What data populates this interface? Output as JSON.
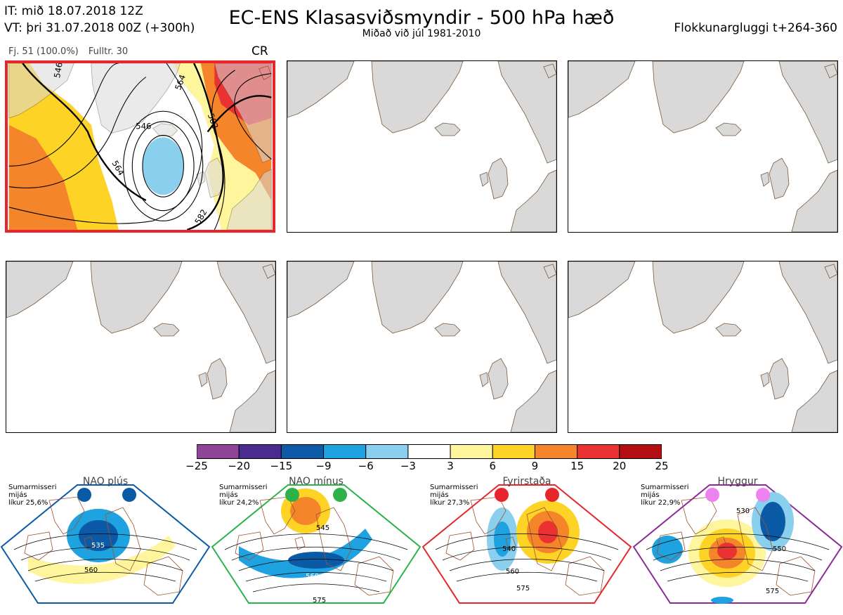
{
  "header": {
    "init_time": "IT: mið 18.07.2018 12Z",
    "valid_time": "VT: þri 31.07.2018 00Z  (+300h)",
    "title": "EC-ENS Klasasviðsmyndir - 500 hPa hæð",
    "subtitle": "Miðað við júl 1981-2010",
    "window": "Flokkunargluggi t+264-360"
  },
  "panel1": {
    "members": "Fj. 51 (100.0%)",
    "representative": "Fulltr. 30",
    "regime": "CR",
    "contours": [
      "546",
      "564",
      "582",
      "546",
      "564",
      "582"
    ]
  },
  "colorbar": {
    "ticks": [
      "−25",
      "−20",
      "−15",
      "−9",
      "−6",
      "−3",
      "3",
      "6",
      "9",
      "15",
      "20",
      "25"
    ],
    "colors": [
      "#8e4597",
      "#4a2b8f",
      "#0f5aa6",
      "#1fa2e0",
      "#8acfee",
      "#ffffff",
      "#fff59d",
      "#fdd326",
      "#f5852a",
      "#ea3233",
      "#b30e12"
    ]
  },
  "regimes": [
    {
      "name": "NAO plús",
      "season": "Sumarmisseri",
      "hist": "mijás",
      "prob": "líkur 25,6%",
      "color": "#0b5aa6",
      "labels": [
        "535",
        "560"
      ]
    },
    {
      "name": "NAO mínus",
      "season": "Sumarmisseri",
      "hist": "mijás",
      "prob": "líkur 24,2%",
      "color": "#2db24a",
      "labels": [
        "545",
        "560",
        "575"
      ]
    },
    {
      "name": "Fyrirstaða",
      "season": "Sumarmisseri",
      "hist": "mijás",
      "prob": "líkur 27,3%",
      "color": "#e8252a",
      "labels": [
        "540",
        "560",
        "575"
      ]
    },
    {
      "name": "Hryggur",
      "season": "Sumarmisseri",
      "hist": "mijás",
      "prob": "líkur 22,9%",
      "color": "#8b2a96",
      "labels": [
        "530",
        "550",
        "575"
      ]
    }
  ]
}
